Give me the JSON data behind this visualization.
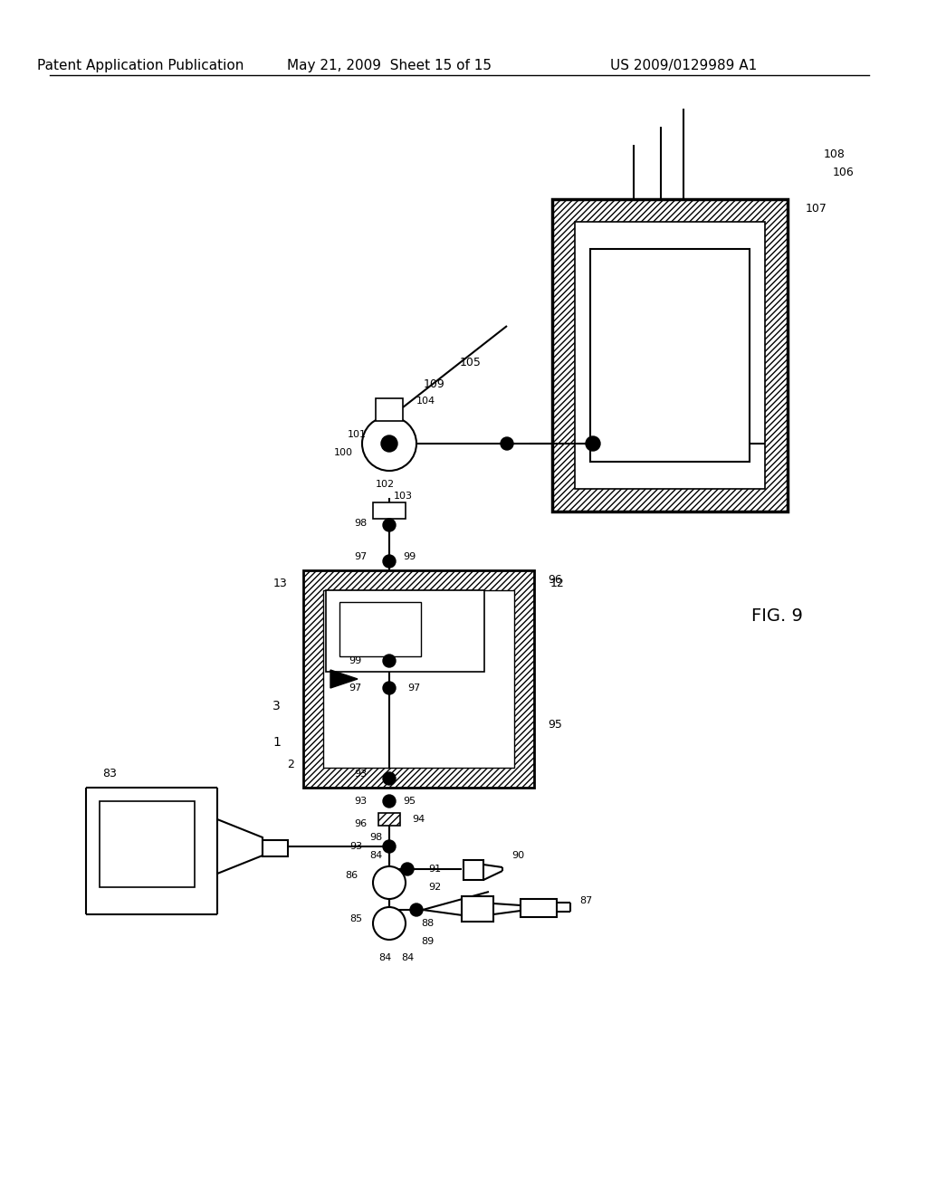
{
  "header_left": "Patent Application Publication",
  "header_mid": "May 21, 2009  Sheet 15 of 15",
  "header_right": "US 2009/0129989 A1",
  "figure_label": "FIG. 9",
  "bg_color": "#ffffff",
  "line_color": "#000000",
  "header_font_size": 11,
  "fig_label_font_size": 14
}
